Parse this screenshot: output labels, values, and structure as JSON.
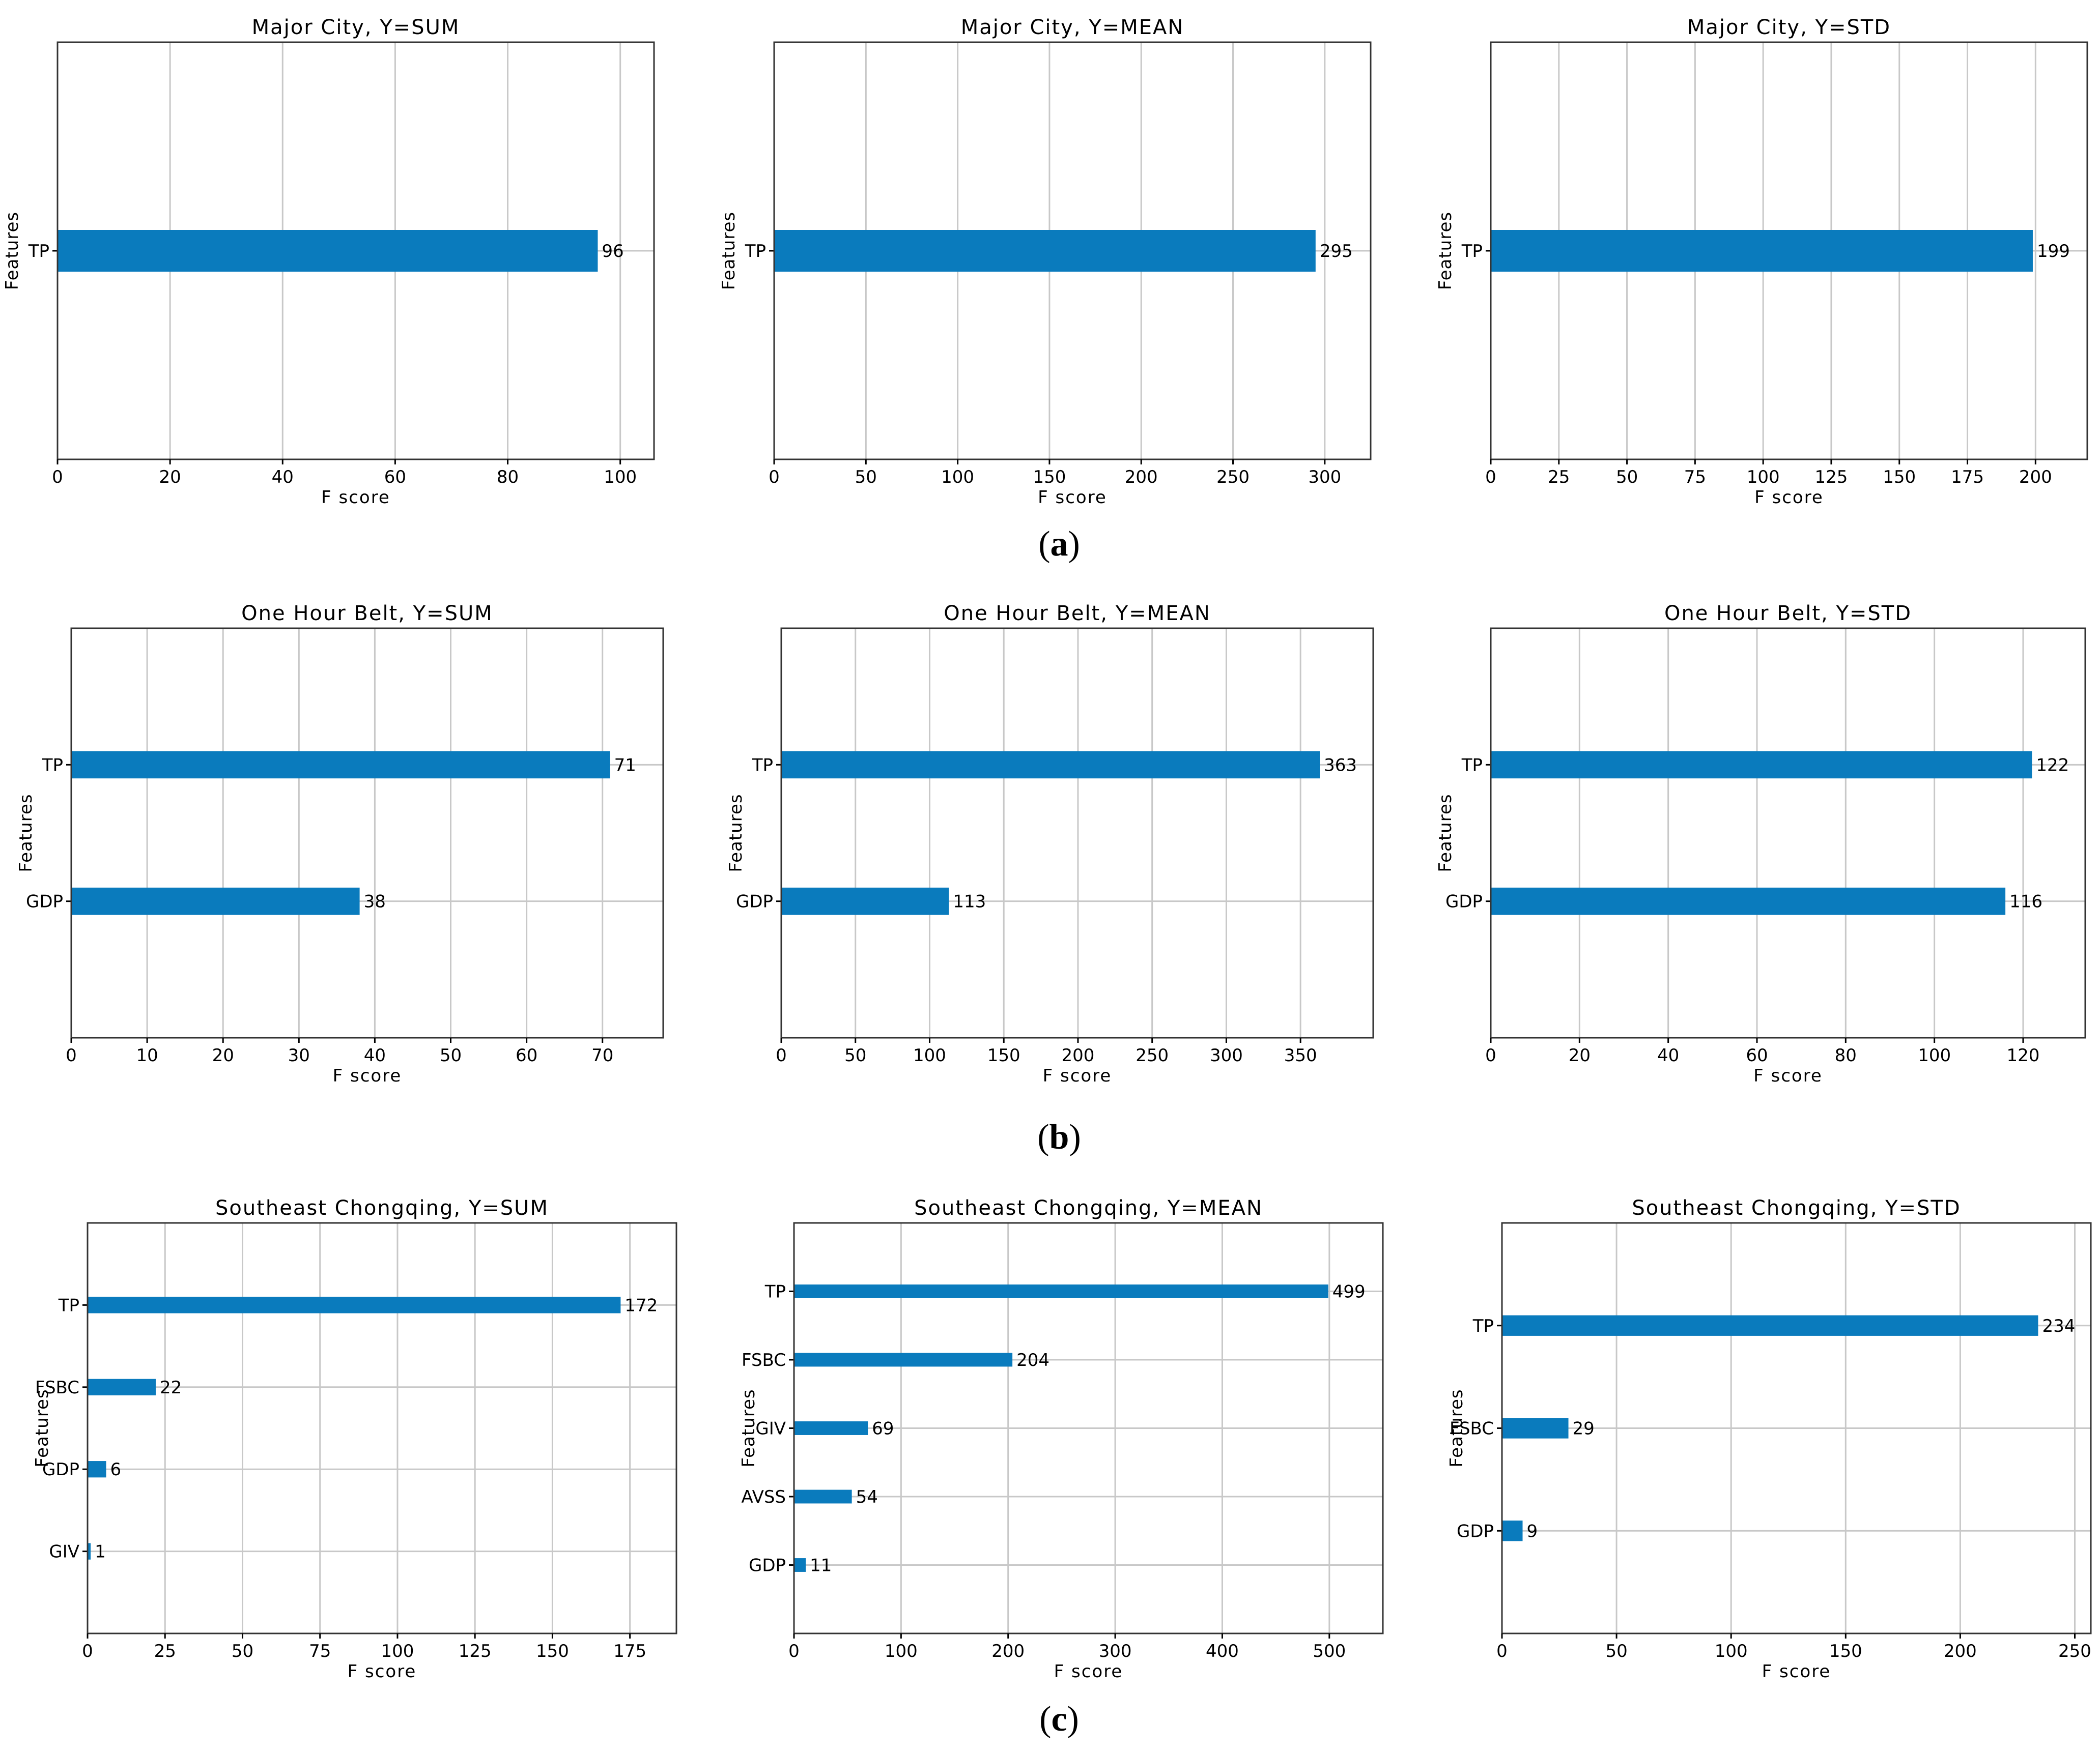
{
  "figure": {
    "panel_labels": {
      "a": "a",
      "b": "b",
      "c": "c"
    },
    "bar_color": "#0a7bbd",
    "grid_color": "#c8c8c8"
  },
  "chart_data": [
    {
      "type": "bar",
      "orientation": "horizontal",
      "title": "Major City, Y=SUM",
      "xlabel": "F score",
      "ylabel": "Features",
      "categories": [
        "TP"
      ],
      "values": [
        96
      ],
      "xlim": [
        0,
        106
      ],
      "xticks": [
        0,
        20,
        40,
        60,
        80,
        100
      ],
      "grid": true,
      "panel": "a"
    },
    {
      "type": "bar",
      "orientation": "horizontal",
      "title": "Major City, Y=MEAN",
      "xlabel": "F score",
      "ylabel": "Features",
      "categories": [
        "TP"
      ],
      "values": [
        295
      ],
      "xlim": [
        0,
        325
      ],
      "xticks": [
        0,
        50,
        100,
        150,
        200,
        250,
        300
      ],
      "grid": true,
      "panel": "a"
    },
    {
      "type": "bar",
      "orientation": "horizontal",
      "title": "Major City, Y=STD",
      "xlabel": "F score",
      "ylabel": "Features",
      "categories": [
        "TP"
      ],
      "values": [
        199
      ],
      "xlim": [
        0,
        219
      ],
      "xticks": [
        0,
        25,
        50,
        75,
        100,
        125,
        150,
        175,
        200
      ],
      "grid": true,
      "panel": "a"
    },
    {
      "type": "bar",
      "orientation": "horizontal",
      "title": "One Hour Belt, Y=SUM",
      "xlabel": "F score",
      "ylabel": "Features",
      "categories": [
        "TP",
        "GDP"
      ],
      "values": [
        71,
        38
      ],
      "xlim": [
        0,
        78
      ],
      "xticks": [
        0,
        10,
        20,
        30,
        40,
        50,
        60,
        70
      ],
      "grid": true,
      "panel": "b"
    },
    {
      "type": "bar",
      "orientation": "horizontal",
      "title": "One Hour Belt, Y=MEAN",
      "xlabel": "F score",
      "ylabel": "Features",
      "categories": [
        "TP",
        "GDP"
      ],
      "values": [
        363,
        113
      ],
      "xlim": [
        0,
        399
      ],
      "xticks": [
        0,
        50,
        100,
        150,
        200,
        250,
        300,
        350
      ],
      "grid": true,
      "panel": "b"
    },
    {
      "type": "bar",
      "orientation": "horizontal",
      "title": "One Hour Belt, Y=STD",
      "xlabel": "F score",
      "ylabel": "Features",
      "categories": [
        "TP",
        "GDP"
      ],
      "values": [
        122,
        116
      ],
      "xlim": [
        0,
        134
      ],
      "xticks": [
        0,
        20,
        40,
        60,
        80,
        100,
        120
      ],
      "grid": true,
      "panel": "b"
    },
    {
      "type": "bar",
      "orientation": "horizontal",
      "title": "Southeast Chongqing, Y=SUM",
      "xlabel": "F score",
      "ylabel": "Features",
      "categories": [
        "TP",
        "FSBC",
        "GDP",
        "GIV"
      ],
      "values": [
        172,
        22,
        6,
        1
      ],
      "xlim": [
        0,
        190
      ],
      "xticks": [
        0,
        25,
        50,
        75,
        100,
        125,
        150,
        175
      ],
      "grid": true,
      "panel": "c"
    },
    {
      "type": "bar",
      "orientation": "horizontal",
      "title": "Southeast Chongqing, Y=MEAN",
      "xlabel": "F score",
      "ylabel": "Features",
      "categories": [
        "TP",
        "FSBC",
        "GIV",
        "AVSS",
        "GDP"
      ],
      "values": [
        499,
        204,
        69,
        54,
        11
      ],
      "xlim": [
        0,
        550
      ],
      "xticks": [
        0,
        100,
        200,
        300,
        400,
        500
      ],
      "grid": true,
      "panel": "c"
    },
    {
      "type": "bar",
      "orientation": "horizontal",
      "title": "Southeast Chongqing, Y=STD",
      "xlabel": "F score",
      "ylabel": "Features",
      "categories": [
        "TP",
        "FSBC",
        "GDP"
      ],
      "values": [
        234,
        29,
        9
      ],
      "xlim": [
        0,
        257
      ],
      "xticks": [
        0,
        50,
        100,
        150,
        200,
        250
      ],
      "grid": true,
      "panel": "c"
    }
  ]
}
